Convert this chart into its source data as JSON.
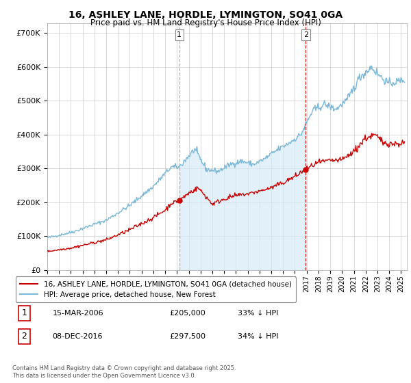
{
  "title": "16, ASHLEY LANE, HORDLE, LYMINGTON, SO41 0GA",
  "subtitle": "Price paid vs. HM Land Registry's House Price Index (HPI)",
  "ylabel_ticks": [
    "£0",
    "£100K",
    "£200K",
    "£300K",
    "£400K",
    "£500K",
    "£600K",
    "£700K"
  ],
  "ytick_values": [
    0,
    100000,
    200000,
    300000,
    400000,
    500000,
    600000,
    700000
  ],
  "ylim": [
    0,
    730000
  ],
  "xlim_start": 1995.0,
  "xlim_end": 2025.5,
  "hpi_color": "#7ab8d9",
  "hpi_fill_color": "#d6eaf8",
  "price_color": "#cc0000",
  "vline1_color": "#aaaaaa",
  "vline2_color": "#cc0000",
  "vline_style": "--",
  "sale1_date": 2006.2,
  "sale1_price": 205000,
  "sale2_date": 2016.93,
  "sale2_price": 297500,
  "legend_label1": "16, ASHLEY LANE, HORDLE, LYMINGTON, SO41 0GA (detached house)",
  "legend_label2": "HPI: Average price, detached house, New Forest",
  "annotation1_label": "1",
  "annotation1_date": "15-MAR-2006",
  "annotation1_price": "£205,000",
  "annotation1_hpi": "33% ↓ HPI",
  "annotation2_label": "2",
  "annotation2_date": "08-DEC-2016",
  "annotation2_price": "£297,500",
  "annotation2_hpi": "34% ↓ HPI",
  "footer": "Contains HM Land Registry data © Crown copyright and database right 2025.\nThis data is licensed under the Open Government Licence v3.0.",
  "background_color": "#ffffff",
  "grid_color": "#cccccc"
}
